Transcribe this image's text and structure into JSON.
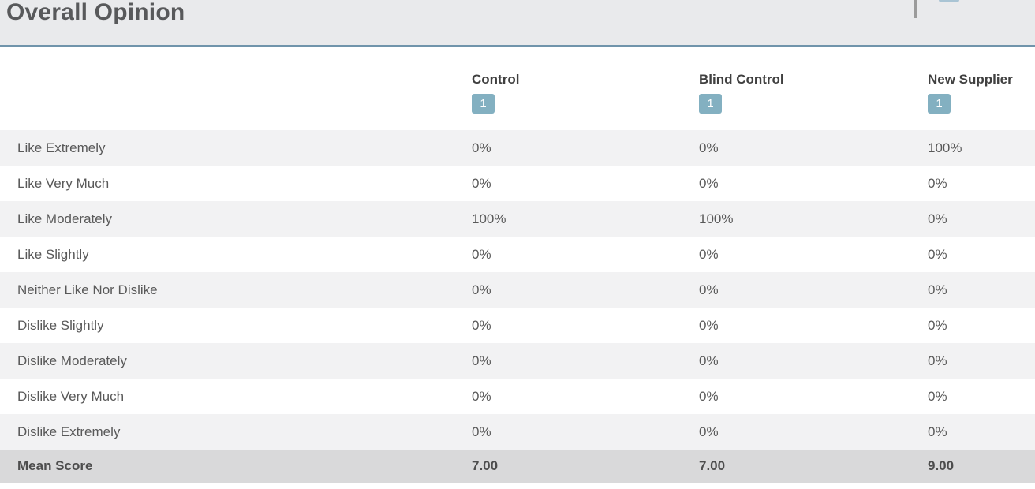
{
  "page": {
    "title": "Overall Opinion"
  },
  "columns": [
    {
      "label": "Control",
      "badge": "1"
    },
    {
      "label": "Blind Control",
      "badge": "1"
    },
    {
      "label": "New Supplier",
      "badge": "1"
    }
  ],
  "rows": [
    {
      "label": "Like Extremely",
      "values": [
        "0%",
        "0%",
        "100%"
      ]
    },
    {
      "label": "Like Very Much",
      "values": [
        "0%",
        "0%",
        "0%"
      ]
    },
    {
      "label": "Like Moderately",
      "values": [
        "100%",
        "100%",
        "0%"
      ]
    },
    {
      "label": "Like Slightly",
      "values": [
        "0%",
        "0%",
        "0%"
      ]
    },
    {
      "label": "Neither Like Nor Dislike",
      "values": [
        "0%",
        "0%",
        "0%"
      ]
    },
    {
      "label": "Dislike Slightly",
      "values": [
        "0%",
        "0%",
        "0%"
      ]
    },
    {
      "label": "Dislike Moderately",
      "values": [
        "0%",
        "0%",
        "0%"
      ]
    },
    {
      "label": "Dislike Very Much",
      "values": [
        "0%",
        "0%",
        "0%"
      ]
    },
    {
      "label": "Dislike Extremely",
      "values": [
        "0%",
        "0%",
        "0%"
      ]
    }
  ],
  "mean_row": {
    "label": "Mean Score",
    "values": [
      "7.00",
      "7.00",
      "9.00"
    ]
  },
  "colors": {
    "header_bg": "#e9eaec",
    "header_border": "#7094ab",
    "badge_bg": "#83b0c1",
    "stripe_bg": "#f2f2f3",
    "mean_row_bg": "#d9d9da",
    "title_text": "#58595b",
    "body_text": "#595959"
  },
  "chart_data": {
    "type": "table",
    "title": "Overall Opinion",
    "columns": [
      "Control",
      "Blind Control",
      "New Supplier"
    ],
    "sample_codes": [
      "1",
      "1",
      "1"
    ],
    "row_labels": [
      "Like Extremely",
      "Like Very Much",
      "Like Moderately",
      "Like Slightly",
      "Neither Like Nor Dislike",
      "Dislike Slightly",
      "Dislike Moderately",
      "Dislike Very Much",
      "Dislike Extremely"
    ],
    "values_percent": [
      [
        0,
        0,
        100
      ],
      [
        0,
        0,
        0
      ],
      [
        100,
        100,
        0
      ],
      [
        0,
        0,
        0
      ],
      [
        0,
        0,
        0
      ],
      [
        0,
        0,
        0
      ],
      [
        0,
        0,
        0
      ],
      [
        0,
        0,
        0
      ],
      [
        0,
        0,
        0
      ]
    ],
    "mean_scores": [
      7.0,
      7.0,
      9.0
    ]
  }
}
